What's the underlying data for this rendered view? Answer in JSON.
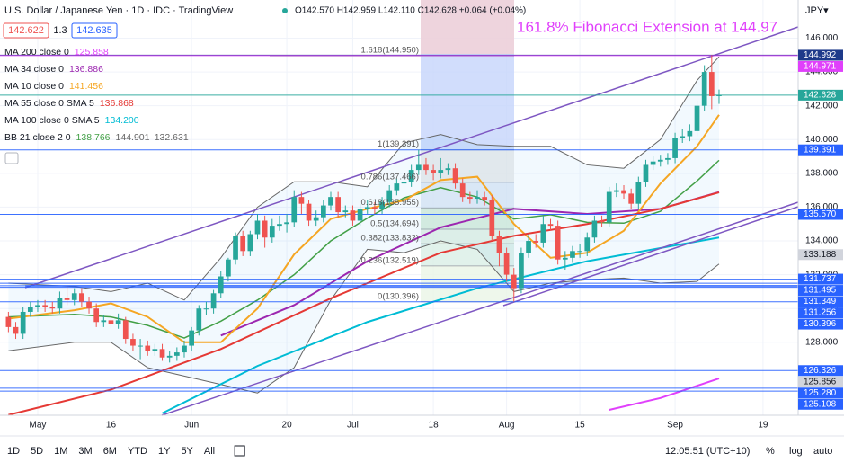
{
  "header": {
    "title": "U.S. Dollar / Japanese Yen · 1D · IDC · TradingView",
    "ohlc": "O142.570 H142.959 L142.110 C142.628 +0.064 (+0.04%)",
    "bid": "142.622",
    "spread": "1.3",
    "ask": "142.635",
    "currency": "JPY▾"
  },
  "toolbar": {
    "ranges": [
      "1D",
      "5D",
      "1M",
      "3M",
      "6M",
      "YTD",
      "1Y",
      "5Y",
      "All"
    ],
    "time": "12:05:51 (UTC+10)",
    "options": [
      "%",
      "log",
      "auto"
    ]
  },
  "chart_data": {
    "type": "candlestick",
    "annotation": "161.8% Fibonacci Extension at 144.97",
    "up_color": "#26a69a",
    "down_color": "#ef5350",
    "grid": true,
    "xlim": [
      -5.15,
      103.8
    ],
    "ylim": [
      123.68,
      148.26
    ],
    "xticks": [
      {
        "value": 0,
        "label": "May"
      },
      {
        "value": 10,
        "label": "16"
      },
      {
        "value": 21,
        "label": "Jun"
      },
      {
        "value": 34,
        "label": "20"
      },
      {
        "value": 43,
        "label": "Jul"
      },
      {
        "value": 54,
        "label": "18"
      },
      {
        "value": 64,
        "label": "Aug"
      },
      {
        "value": 74,
        "label": "15"
      },
      {
        "value": 87,
        "label": "Sep"
      },
      {
        "value": 99,
        "label": "19"
      }
    ],
    "yticks": [
      {
        "value": 128,
        "label": "128.000"
      },
      {
        "value": 130,
        "label": "130.000"
      },
      {
        "value": 132,
        "label": "132.000"
      },
      {
        "value": 134,
        "label": "134.000"
      },
      {
        "value": 136,
        "label": "136.000"
      },
      {
        "value": 138,
        "label": "138.000"
      },
      {
        "value": 140,
        "label": "140.000"
      },
      {
        "value": 142,
        "label": "142.000"
      },
      {
        "value": 144,
        "label": "144.000"
      },
      {
        "value": 146,
        "label": "146.000"
      }
    ],
    "x": [
      -4,
      -3,
      -2,
      -1,
      0,
      1,
      2,
      3,
      4,
      5,
      6,
      7,
      8,
      9,
      10,
      11,
      12,
      13,
      14,
      15,
      16,
      17,
      18,
      19,
      20,
      21,
      22,
      23,
      24,
      25,
      26,
      27,
      28,
      29,
      30,
      31,
      32,
      33,
      34,
      35,
      36,
      37,
      38,
      39,
      40,
      41,
      42,
      43,
      44,
      45,
      46,
      47,
      48,
      49,
      50,
      51,
      52,
      53,
      54,
      55,
      56,
      57,
      58,
      59,
      60,
      61,
      62,
      63,
      64,
      65,
      66,
      67,
      68,
      69,
      70,
      71,
      72,
      73,
      74,
      75,
      76,
      77,
      78,
      79,
      80,
      81,
      82,
      83,
      84,
      85,
      86,
      87,
      88,
      89,
      90,
      91,
      92,
      93
    ],
    "open": [
      129.5,
      128.9,
      128.5,
      129.8,
      130.1,
      130.2,
      130.1,
      130.0,
      130.6,
      130.5,
      130.9,
      130.4,
      130.0,
      129.2,
      129.3,
      129.1,
      129.3,
      128.2,
      127.8,
      127.8,
      127.5,
      127.6,
      127.1,
      127.2,
      127.4,
      127.8,
      128.7,
      130.0,
      130.0,
      130.9,
      131.9,
      132.9,
      134.3,
      133.4,
      134.4,
      135.2,
      134.2,
      134.9,
      135.0,
      135.1,
      136.6,
      136.2,
      135.2,
      135.4,
      136.1,
      136.6,
      135.7,
      135.8,
      135.2,
      135.9,
      136.0,
      135.9,
      136.3,
      137.0,
      137.4,
      137.5,
      138.2,
      138.5,
      138.2,
      138.0,
      138.2,
      138.3,
      137.4,
      136.6,
      136.5,
      136.6,
      136.4,
      134.3,
      133.3,
      132.0,
      131.2,
      133.3,
      134.0,
      133.9,
      135.0,
      134.9,
      132.9,
      133.0,
      133.4,
      133.4,
      134.2,
      135.2,
      135.1,
      136.9,
      137.0,
      136.8,
      136.2,
      137.5,
      138.5,
      138.7,
      138.8,
      138.9,
      140.1,
      140.2,
      140.5,
      142.0,
      144.0,
      142.57
    ],
    "high": [
      129.8,
      129.2,
      130.1,
      130.4,
      130.5,
      130.5,
      130.4,
      131.0,
      131.3,
      131.2,
      131.2,
      130.7,
      130.3,
      129.6,
      129.6,
      129.7,
      129.5,
      128.5,
      128.2,
      128.1,
      127.9,
      127.9,
      127.5,
      127.7,
      128.1,
      128.9,
      130.2,
      130.4,
      131.1,
      132.2,
      133.0,
      134.5,
      134.6,
      134.6,
      135.6,
      135.5,
      135.3,
      135.5,
      135.6,
      137.0,
      136.9,
      136.4,
      135.8,
      136.4,
      136.9,
      136.9,
      136.1,
      136.1,
      136.2,
      136.4,
      136.3,
      136.6,
      137.3,
      137.7,
      137.8,
      138.5,
      139.4,
      138.9,
      138.5,
      138.9,
      138.6,
      138.6,
      137.7,
      136.9,
      137.0,
      136.9,
      136.7,
      134.6,
      133.6,
      132.4,
      133.6,
      134.4,
      134.4,
      135.5,
      135.3,
      135.2,
      133.4,
      133.7,
      133.8,
      134.5,
      135.5,
      135.5,
      137.2,
      137.4,
      137.3,
      137.1,
      137.8,
      138.8,
      139.0,
      139.1,
      139.2,
      140.4,
      140.6,
      140.9,
      142.3,
      144.4,
      144.99,
      142.959
    ],
    "low": [
      128.6,
      128.2,
      128.2,
      129.5,
      129.8,
      129.8,
      129.7,
      129.7,
      130.2,
      130.2,
      130.1,
      129.7,
      128.9,
      128.9,
      128.8,
      128.8,
      127.9,
      127.5,
      127.0,
      127.2,
      127.2,
      126.9,
      126.8,
      126.9,
      127.1,
      127.5,
      128.4,
      129.6,
      129.7,
      130.6,
      131.6,
      132.6,
      133.1,
      133.1,
      134.1,
      133.6,
      133.9,
      134.6,
      134.5,
      134.8,
      135.6,
      134.9,
      134.9,
      135.1,
      135.8,
      135.4,
      135.4,
      134.9,
      134.9,
      135.6,
      135.6,
      135.6,
      136.0,
      136.7,
      137.1,
      137.2,
      137.9,
      137.9,
      137.6,
      137.7,
      137.9,
      137.1,
      136.3,
      136.2,
      136.2,
      136.1,
      134.0,
      132.5,
      131.6,
      130.4,
      130.9,
      133.0,
      133.6,
      133.6,
      134.6,
      132.6,
      132.3,
      132.7,
      133.0,
      133.1,
      133.9,
      134.8,
      134.8,
      136.6,
      136.5,
      135.9,
      135.9,
      137.2,
      138.2,
      138.4,
      138.5,
      138.6,
      139.8,
      139.9,
      140.2,
      141.7,
      141.8,
      142.11
    ],
    "close": [
      128.9,
      128.5,
      129.8,
      130.1,
      130.2,
      130.1,
      130.0,
      130.6,
      130.5,
      130.9,
      130.4,
      130.0,
      129.2,
      129.3,
      129.1,
      129.3,
      128.2,
      127.8,
      127.8,
      127.5,
      127.6,
      127.1,
      127.2,
      127.4,
      127.8,
      128.7,
      130.0,
      130.0,
      130.9,
      131.9,
      132.9,
      134.3,
      133.4,
      134.4,
      135.2,
      134.2,
      134.9,
      135.0,
      135.1,
      136.6,
      136.2,
      135.2,
      135.4,
      136.1,
      136.6,
      135.7,
      135.8,
      135.2,
      135.9,
      136.0,
      135.9,
      136.3,
      137.0,
      137.4,
      137.5,
      138.2,
      138.5,
      138.2,
      138.0,
      138.2,
      138.3,
      137.4,
      136.6,
      136.5,
      136.6,
      136.4,
      134.3,
      133.3,
      132.0,
      131.2,
      133.3,
      134.0,
      133.9,
      135.0,
      134.9,
      132.9,
      133.0,
      133.4,
      133.4,
      134.2,
      135.2,
      135.1,
      136.9,
      137.0,
      136.8,
      136.2,
      137.5,
      138.5,
      138.7,
      138.8,
      138.9,
      140.1,
      140.2,
      140.5,
      142.0,
      144.0,
      142.57,
      142.628
    ],
    "lines": [
      {
        "name": "MA 200 close 0",
        "value_label": "125.858",
        "color": "#e040fb",
        "x": [
          78,
          85,
          93
        ],
        "values": [
          124.0,
          124.7,
          125.86
        ]
      },
      {
        "name": "MA 34 close 0",
        "value_label": "136.886",
        "color": "#9c27b0",
        "x": [
          25,
          35,
          45,
          55,
          65,
          75,
          85,
          93
        ],
        "values": [
          128.4,
          130.2,
          132.8,
          134.8,
          135.9,
          135.6,
          135.9,
          136.89
        ]
      },
      {
        "name": "MA 10 close 0",
        "value_label": "141.456",
        "color": "#f5a623",
        "x": [
          -4,
          5,
          10,
          15,
          20,
          25,
          30,
          35,
          40,
          45,
          50,
          55,
          60,
          65,
          70,
          75,
          80,
          85,
          90,
          93
        ],
        "values": [
          129.4,
          129.9,
          130.3,
          129.5,
          128.0,
          128.0,
          130.0,
          133.2,
          135.3,
          135.9,
          136.4,
          137.6,
          137.8,
          135.0,
          133.0,
          133.3,
          134.6,
          137.4,
          139.6,
          141.46
        ]
      },
      {
        "name": "MA 55 close 0 SMA 5",
        "value_label": "136.868",
        "color": "#e53935",
        "x": [
          -4,
          10,
          25,
          40,
          55,
          65,
          75,
          85,
          93
        ],
        "values": [
          123.7,
          125.2,
          127.6,
          130.6,
          133.3,
          134.3,
          135.0,
          135.9,
          136.87
        ]
      },
      {
        "name": "MA 100 close 0 SMA 5",
        "value_label": "134.200",
        "color": "#00bcd4",
        "x": [
          17,
          30,
          45,
          60,
          75,
          93
        ],
        "values": [
          123.8,
          126.6,
          129.2,
          131.2,
          132.8,
          134.2
        ]
      }
    ],
    "bb": {
      "name": "BB 21 close 2 0",
      "basis_label": "138.766",
      "upper_label": "144.901",
      "lower_label": "132.631",
      "basis_color": "#43a047",
      "band_color": "#666666",
      "x": [
        -4,
        5,
        10,
        15,
        20,
        25,
        30,
        35,
        40,
        45,
        50,
        55,
        60,
        65,
        70,
        75,
        80,
        85,
        90,
        93
      ],
      "basis": [
        129.5,
        129.65,
        129.5,
        129.0,
        128.25,
        129.25,
        130.5,
        132.0,
        134.0,
        135.35,
        136.55,
        137.15,
        136.6,
        135.3,
        135.55,
        135.1,
        135.05,
        135.75,
        137.55,
        138.77
      ],
      "upper": [
        131.5,
        131.3,
        131.0,
        131.5,
        130.5,
        133.0,
        136.0,
        137.5,
        137.5,
        137.2,
        139.8,
        140.3,
        139.7,
        139.6,
        139.6,
        138.5,
        138.3,
        140.0,
        143.5,
        144.9
      ],
      "lower": [
        127.5,
        128.0,
        128.0,
        126.5,
        126.0,
        125.5,
        125.0,
        126.5,
        130.5,
        133.5,
        133.3,
        134.0,
        133.5,
        131.0,
        131.5,
        131.7,
        131.8,
        131.5,
        131.6,
        132.63
      ]
    },
    "fib": [
      {
        "label": "1.618(144.950)",
        "value": 144.95
      },
      {
        "label": "1(139.391)",
        "value": 139.391
      },
      {
        "label": "0.786(137.466)",
        "value": 137.466
      },
      {
        "label": "0.618(135.955)",
        "value": 135.955
      },
      {
        "label": "0.5(134.694)",
        "value": 134.694
      },
      {
        "label": "0.382(133.832)",
        "value": 133.832
      },
      {
        "label": "0.236(132.519)",
        "value": 132.519
      },
      {
        "label": "0(130.396)",
        "value": 130.396
      }
    ],
    "price_levels": [
      {
        "value": 144.992,
        "label": "144.992",
        "color": "#1e3a8a"
      },
      {
        "value": 144.971,
        "label": "144.971",
        "color": "#e040fb"
      },
      {
        "value": 142.628,
        "label": "142.628",
        "color": "#26a69a"
      },
      {
        "value": 139.391,
        "label": "139.391",
        "color": "#2962ff"
      },
      {
        "value": 135.57,
        "label": "135.570",
        "color": "#2962ff"
      },
      {
        "value": 133.188,
        "label": "133.188",
        "color": "#d1d4dc"
      },
      {
        "value": 131.737,
        "label": "131.737",
        "color": "#2962ff"
      },
      {
        "value": 131.495,
        "label": "131.495",
        "color": "#2962ff"
      },
      {
        "value": 131.349,
        "label": "131.349",
        "color": "#2962ff"
      },
      {
        "value": 131.256,
        "label": "131.256",
        "color": "#2962ff"
      },
      {
        "value": 130.396,
        "label": "130.396",
        "color": "#2962ff"
      },
      {
        "value": 126.326,
        "label": "126.326",
        "color": "#2962ff"
      },
      {
        "value": 125.856,
        "label": "125.856",
        "color": "#d1d4dc"
      },
      {
        "value": 125.28,
        "label": "125.280",
        "color": "#2962ff"
      },
      {
        "value": 125.108,
        "label": "125.108",
        "color": "#2962ff"
      }
    ]
  }
}
